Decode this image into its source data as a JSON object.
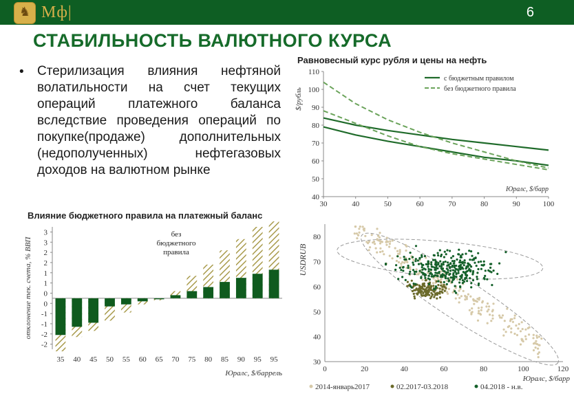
{
  "header": {
    "logo_text": "Мф|",
    "page_number": "6"
  },
  "title": "СТАБИЛЬНОСТЬ ВАЛЮТНОГО КУРСА",
  "bullet": {
    "text": "Стерилизация влияния нефтяной волатильности на счет текущих операций платежного баланса вследствие проведения операций по покупке(продаже) дополнительных (недополученных) нефтегазовых доходов на валютном рынке"
  },
  "chart_data": [
    {
      "type": "line",
      "title": "Равновесный курс рубля и цены на нефть",
      "ylabel": "$/рубль",
      "xlabel": "Юралс, $/барр",
      "xlim": [
        30,
        100
      ],
      "ylim": [
        40,
        110
      ],
      "x_ticks": [
        30,
        40,
        50,
        60,
        70,
        80,
        90,
        100
      ],
      "y_ticks": [
        40,
        50,
        60,
        70,
        80,
        90,
        100,
        110
      ],
      "legend": [
        "с бюджетным правилом",
        "без бюджетного правила"
      ],
      "series": [
        {
          "name": "с бюджетным правилом",
          "style": "solid",
          "x": [
            30,
            40,
            50,
            60,
            70,
            80,
            90,
            100
          ],
          "values": [
            84,
            80,
            77,
            74.5,
            72,
            70,
            68,
            66
          ]
        },
        {
          "name": "с бюджетным правилом",
          "style": "solid",
          "x": [
            30,
            40,
            50,
            60,
            70,
            80,
            90,
            100
          ],
          "values": [
            79,
            74.5,
            71,
            68,
            65,
            62,
            60,
            57.5
          ]
        },
        {
          "name": "без бюджетного правила",
          "style": "dashed",
          "x": [
            30,
            40,
            50,
            60,
            70,
            80,
            90,
            100
          ],
          "values": [
            104,
            92,
            83,
            76,
            70,
            65,
            60,
            56
          ]
        },
        {
          "name": "без бюджетного правила",
          "style": "dashed",
          "x": [
            30,
            40,
            50,
            60,
            70,
            80,
            90,
            100
          ],
          "values": [
            88,
            81,
            74,
            68,
            64,
            61,
            58,
            55
          ]
        }
      ],
      "colors": {
        "line": "#1f6b2a",
        "dashed": "#6aa35a"
      }
    },
    {
      "type": "bar",
      "title": "Влияние бюджетного правила на платежный баланс",
      "ylabel": "отклонение тек. счета, % ВВП",
      "xlabel": "Юралс, $/баррель",
      "categories": [
        "35",
        "40",
        "45",
        "50",
        "55",
        "60",
        "65",
        "70",
        "75",
        "80",
        "85",
        "90",
        "95",
        "95"
      ],
      "y_tick_labels": [
        "-2",
        "-2",
        "-1",
        "-1",
        "0",
        "0",
        "1",
        "1",
        "2",
        "2",
        "3",
        "3"
      ],
      "ylim": [
        -2.5,
        3.5
      ],
      "annotation": "без бюджетного правила",
      "series": [
        {
          "name": "с бюджетным правилом",
          "values": [
            -1.8,
            -1.4,
            -1.2,
            -0.4,
            -0.3,
            -0.15,
            -0.05,
            0.15,
            0.35,
            0.55,
            0.8,
            1.0,
            1.2,
            1.4
          ]
        },
        {
          "name": "без бюджетного правила",
          "values": [
            -2.6,
            -1.9,
            -1.6,
            -1.1,
            -0.7,
            -0.3,
            -0.1,
            0.35,
            1.1,
            1.65,
            2.35,
            2.9,
            3.5,
            4.0
          ]
        }
      ],
      "colors": {
        "solid": "#0f5b1e",
        "hatch": "#a89a4a"
      }
    },
    {
      "type": "scatter",
      "ylabel": "USDRUB",
      "xlabel": "Юралс, $/барр",
      "xlim": [
        0,
        120
      ],
      "ylim": [
        30,
        85
      ],
      "x_ticks": [
        0,
        20,
        40,
        60,
        80,
        100,
        120
      ],
      "y_ticks": [
        30,
        40,
        50,
        60,
        70,
        80
      ],
      "legend": [
        "2014-январь2017",
        "02.2017-03.2018",
        "04.2018 - н.в."
      ],
      "series": [
        {
          "name": "2014-январь2017",
          "color": "#d6c9a8"
        },
        {
          "name": "02.2017-03.2018",
          "color": "#6b6a2a"
        },
        {
          "name": "04.2018 - н.в.",
          "color": "#14602a"
        }
      ]
    }
  ]
}
